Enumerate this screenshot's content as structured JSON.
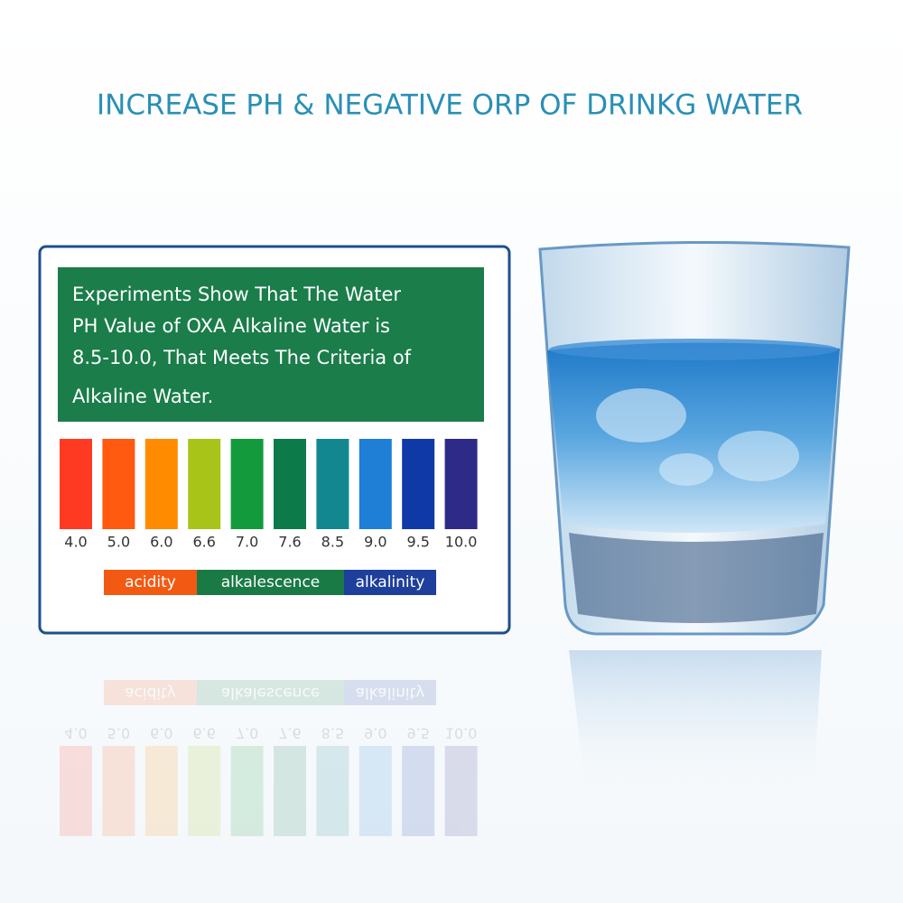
{
  "title": "INCREASE PH & NEGATIVE ORP OF DRINKG WATER",
  "panel": {
    "text": [
      "Experiments Show That The Water",
      "PH Value of OXA Alkaline Water is",
      "8.5-10.0, That Meets The Criteria of",
      "Alkaline Water."
    ],
    "scale": [
      {
        "label": "4.0",
        "color": "#ff3a22"
      },
      {
        "label": "5.0",
        "color": "#ff5a10"
      },
      {
        "label": "6.0",
        "color": "#ff8c00"
      },
      {
        "label": "6.6",
        "color": "#a8c418"
      },
      {
        "label": "7.0",
        "color": "#139a3c"
      },
      {
        "label": "7.6",
        "color": "#0d7a4a"
      },
      {
        "label": "8.5",
        "color": "#12878f"
      },
      {
        "label": "9.0",
        "color": "#1f7fd6"
      },
      {
        "label": "9.5",
        "color": "#1039a8"
      },
      {
        "label": "10.0",
        "color": "#2e2a87"
      }
    ],
    "legend": [
      {
        "label": "acidity",
        "color": "#f25a14"
      },
      {
        "label": "alkalescence",
        "color": "#1a7a45"
      },
      {
        "label": "alkalinity",
        "color": "#1e3f9c"
      }
    ]
  }
}
